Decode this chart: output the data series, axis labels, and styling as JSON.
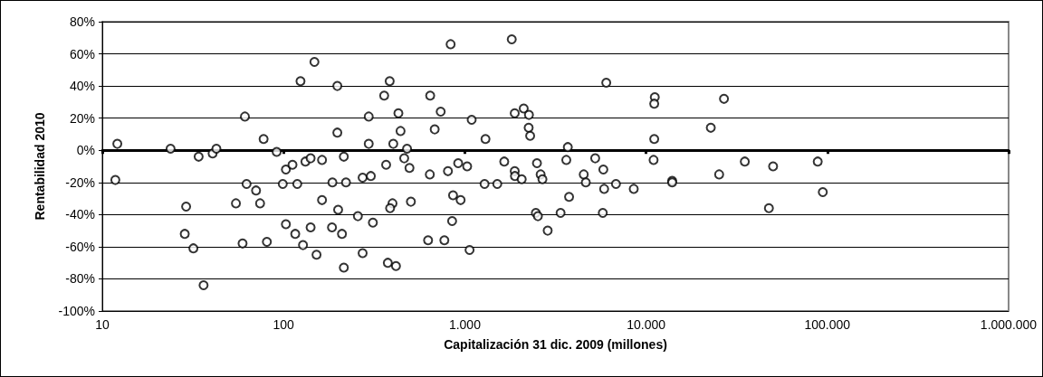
{
  "chart_data": {
    "type": "scatter",
    "xlabel": "Capitalización 31 dic. 2009 (millones)",
    "ylabel": "Rentabilidad 2010",
    "x": [
      12.1,
      11.8,
      23.8,
      29,
      28.5,
      31.8,
      36.2,
      34,
      40.6,
      42.6,
      61.2,
      54.6,
      62.5,
      70.5,
      74.2,
      59.4,
      80.9,
      77.6,
      91.6,
      103,
      112,
      132,
      141,
      163,
      99,
      119,
      163,
      103,
      116,
      141,
      128,
      152,
      124,
      148,
      198,
      198,
      215,
      186,
      221,
      200,
      185,
      210,
      215,
      257,
      273,
      303,
      295,
      295,
      311,
      273,
      359,
      385,
      368,
      403,
      430,
      442,
      480,
      463,
      495,
      399,
      387,
      504,
      376,
      417,
      644,
      682,
      736,
      641,
      807,
      919,
      1030,
      861,
      948,
      851,
      627,
      771,
      1062,
      835,
      1091,
      1300,
      1285,
      1510,
      1650,
      1815,
      1885,
      2113,
      2258,
      2250,
      2293,
      1885,
      1890,
      2060,
      2500,
      2620,
      2680,
      2465,
      2530,
      3700,
      3630,
      3760,
      3375,
      2865,
      4530,
      4650,
      5240,
      5810,
      5870,
      5770,
      6030,
      6820,
      8550,
      11170,
      11090,
      11090,
      11000,
      13930,
      13930,
      22750,
      26900,
      25300,
      35050,
      50200,
      47600,
      88500,
      94400
    ],
    "values": [
      4,
      -18.5,
      1,
      -35,
      -52,
      -61,
      -84,
      -4,
      -2,
      1,
      21,
      -33,
      -21,
      -25,
      -33,
      -58,
      -57,
      7,
      -1,
      -12,
      -9,
      -7,
      -5,
      -6,
      -21,
      -21,
      -31,
      -46,
      -52,
      -48,
      -59,
      -65,
      43,
      55,
      40,
      11,
      -4,
      -20,
      -20,
      -37,
      -48,
      -52,
      -73,
      -41,
      -17,
      -16,
      4,
      21,
      -45,
      -64,
      34,
      43,
      -9,
      4,
      23,
      12,
      1,
      -5,
      -11,
      -33,
      -36,
      -32,
      -70,
      -72,
      34,
      13,
      24,
      -15,
      -13,
      -8,
      -10,
      -28,
      -31,
      -44,
      -56,
      -56,
      -62,
      66,
      19,
      7,
      -21,
      -21,
      -7,
      69,
      23,
      26,
      22,
      14,
      9,
      -13,
      -16,
      -18,
      -8,
      -15,
      -18,
      -39,
      -41,
      2,
      -6,
      -29,
      -39,
      -50,
      -15,
      -20,
      -5,
      -12,
      -24,
      -39,
      42,
      -21,
      -24,
      33,
      29,
      7,
      -6,
      -19,
      -20,
      14,
      32,
      -15,
      -7,
      -10,
      -36,
      -7,
      -26
    ],
    "color": "#000000",
    "marker": "circle",
    "log": "x",
    "xlim": [
      10,
      1000000
    ],
    "xticks": [
      10,
      100,
      {
        "value": 1000,
        "label": "1.000"
      },
      {
        "value": 10000,
        "label": "10.000"
      },
      {
        "value": 100000,
        "label": "100.000"
      },
      {
        "value": 1000000,
        "label": "1.000.000"
      }
    ],
    "ylim": [
      -100,
      80
    ],
    "yticks": [
      {
        "value": -100,
        "label": "-100%"
      },
      {
        "value": -80,
        "label": "-80%"
      },
      {
        "value": -60,
        "label": "-60%"
      },
      {
        "value": -40,
        "label": "-40%"
      },
      {
        "value": -20,
        "label": "-20%"
      },
      {
        "value": 0,
        "label": "0%"
      },
      {
        "value": 20,
        "label": "20%"
      },
      {
        "value": 40,
        "label": "40%"
      },
      {
        "value": 60,
        "label": "60%"
      },
      {
        "value": 80,
        "label": "80%"
      }
    ],
    "grid": "y"
  }
}
